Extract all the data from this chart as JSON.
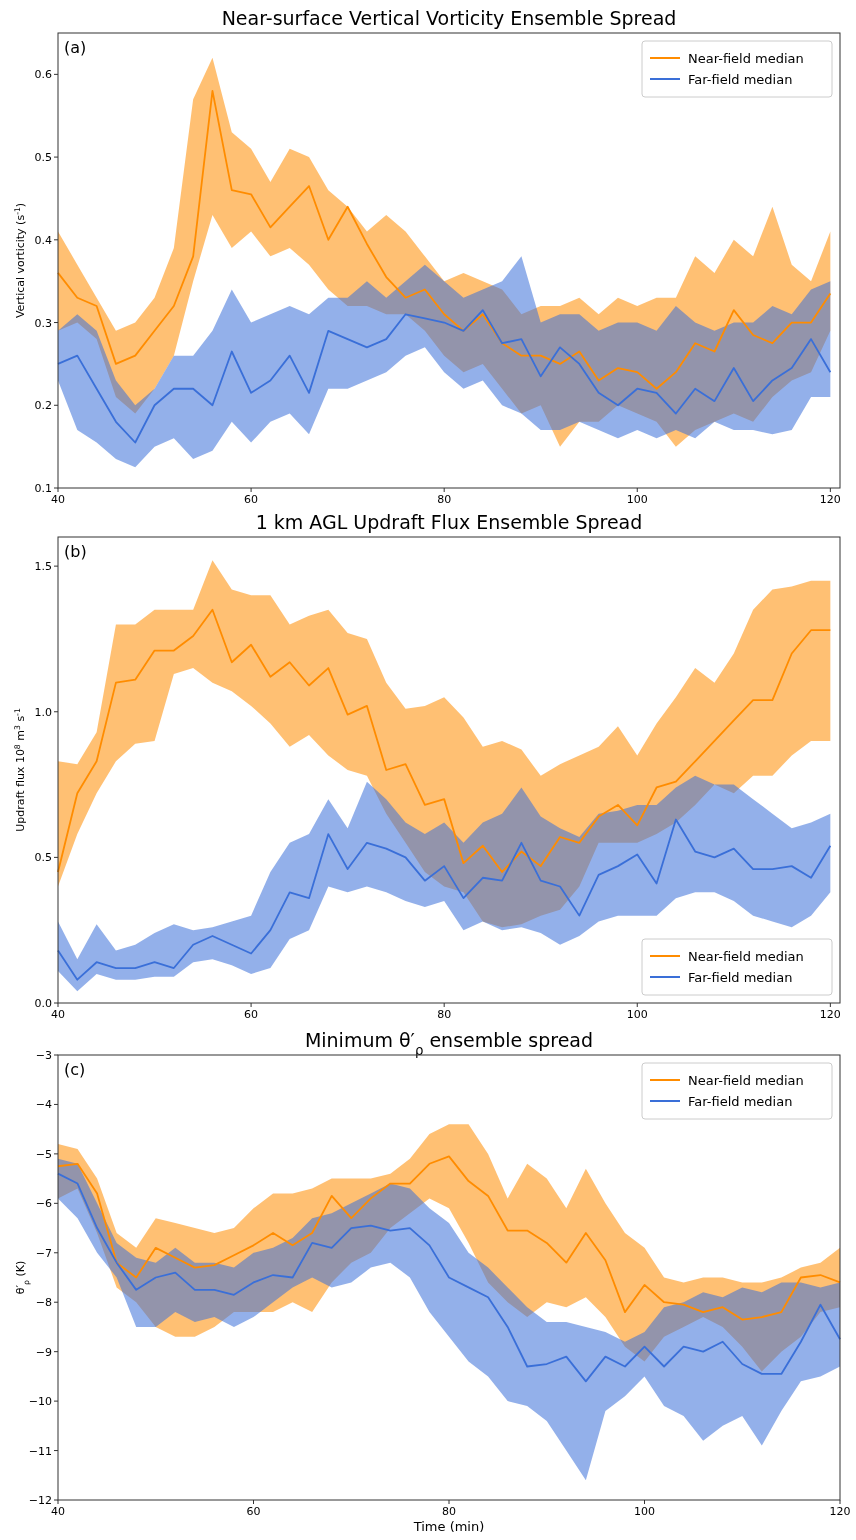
{
  "chart_data": [
    {
      "type": "line",
      "title": "Near-surface Vertical Vorticity Ensemble Spread",
      "ylabel": "Vertical vorticity (s$^{-1}$)",
      "annotations": [
        "(a)"
      ],
      "legend": "top right",
      "grid": false,
      "x": [
        40,
        42,
        44,
        46,
        48,
        50,
        52,
        54,
        56,
        58,
        60,
        62,
        64,
        66,
        68,
        70,
        72,
        74,
        76,
        78,
        80,
        82,
        84,
        86,
        88,
        90,
        92,
        94,
        96,
        98,
        100,
        102,
        104,
        106,
        108,
        110,
        112,
        114,
        116,
        118,
        120
      ],
      "xlim": [
        40,
        121
      ],
      "xticks": [
        40,
        60,
        80,
        100,
        120
      ],
      "ylim": [
        0.1,
        0.65
      ],
      "yticks": [
        0.1,
        0.2,
        0.3,
        0.4,
        0.5,
        0.6
      ],
      "series": [
        {
          "name": "Near-field median",
          "color": "#ff8c00",
          "values": [
            0.36,
            0.33,
            0.32,
            0.25,
            0.26,
            0.29,
            0.32,
            0.38,
            0.58,
            0.46,
            0.455,
            0.415,
            0.44,
            0.465,
            0.4,
            0.44,
            0.395,
            0.355,
            0.33,
            0.34,
            0.31,
            0.29,
            0.31,
            0.275,
            0.26,
            0.26,
            0.25,
            0.265,
            0.23,
            0.245,
            0.24,
            0.22,
            0.24,
            0.275,
            0.265,
            0.315,
            0.285,
            0.275,
            0.3,
            0.3,
            0.335
          ],
          "lower": [
            0.29,
            0.3,
            0.28,
            0.21,
            0.19,
            0.22,
            0.26,
            0.35,
            0.43,
            0.39,
            0.41,
            0.38,
            0.39,
            0.37,
            0.34,
            0.32,
            0.32,
            0.31,
            0.31,
            0.29,
            0.26,
            0.24,
            0.25,
            0.22,
            0.19,
            0.2,
            0.15,
            0.18,
            0.18,
            0.2,
            0.19,
            0.18,
            0.15,
            0.17,
            0.18,
            0.19,
            0.18,
            0.21,
            0.23,
            0.24,
            0.29
          ],
          "upper": [
            0.41,
            0.37,
            0.33,
            0.29,
            0.3,
            0.33,
            0.39,
            0.57,
            0.62,
            0.53,
            0.51,
            0.47,
            0.51,
            0.5,
            0.46,
            0.44,
            0.41,
            0.43,
            0.41,
            0.38,
            0.35,
            0.36,
            0.35,
            0.34,
            0.31,
            0.32,
            0.32,
            0.33,
            0.31,
            0.33,
            0.32,
            0.33,
            0.33,
            0.38,
            0.36,
            0.4,
            0.38,
            0.44,
            0.37,
            0.35,
            0.41
          ]
        },
        {
          "name": "Far-field median",
          "color": "#3a6fd8",
          "values": [
            0.25,
            0.26,
            0.22,
            0.18,
            0.155,
            0.2,
            0.22,
            0.22,
            0.2,
            0.265,
            0.215,
            0.23,
            0.26,
            0.215,
            0.29,
            0.28,
            0.27,
            0.28,
            0.31,
            0.305,
            0.3,
            0.29,
            0.315,
            0.275,
            0.28,
            0.235,
            0.27,
            0.25,
            0.215,
            0.2,
            0.22,
            0.215,
            0.19,
            0.22,
            0.205,
            0.245,
            0.205,
            0.23,
            0.245,
            0.28,
            0.24
          ],
          "lower": [
            0.23,
            0.17,
            0.155,
            0.135,
            0.125,
            0.15,
            0.16,
            0.135,
            0.145,
            0.18,
            0.155,
            0.18,
            0.19,
            0.165,
            0.22,
            0.22,
            0.23,
            0.24,
            0.26,
            0.27,
            0.24,
            0.22,
            0.23,
            0.2,
            0.19,
            0.17,
            0.17,
            0.18,
            0.17,
            0.16,
            0.17,
            0.16,
            0.17,
            0.16,
            0.18,
            0.17,
            0.17,
            0.165,
            0.17,
            0.21,
            0.21
          ],
          "upper": [
            0.29,
            0.31,
            0.29,
            0.23,
            0.2,
            0.22,
            0.26,
            0.26,
            0.29,
            0.34,
            0.3,
            0.31,
            0.32,
            0.31,
            0.33,
            0.33,
            0.35,
            0.33,
            0.35,
            0.37,
            0.35,
            0.33,
            0.34,
            0.35,
            0.38,
            0.3,
            0.31,
            0.31,
            0.29,
            0.3,
            0.3,
            0.29,
            0.32,
            0.3,
            0.29,
            0.3,
            0.3,
            0.32,
            0.31,
            0.34,
            0.35
          ]
        }
      ]
    },
    {
      "type": "line",
      "title": "1 km AGL Updraft Flux Ensemble Spread",
      "ylabel": "Updraft flux 10$^{8}$ m$^{3}$ s$^{-1}$",
      "annotations": [
        "(b)"
      ],
      "legend": "bottom right",
      "grid": false,
      "x": [
        40,
        42,
        44,
        46,
        48,
        50,
        52,
        54,
        56,
        58,
        60,
        62,
        64,
        66,
        68,
        70,
        72,
        74,
        76,
        78,
        80,
        82,
        84,
        86,
        88,
        90,
        92,
        94,
        96,
        98,
        100,
        102,
        104,
        106,
        108,
        110,
        112,
        114,
        116,
        118,
        120
      ],
      "xlim": [
        40,
        121
      ],
      "xticks": [
        40,
        60,
        80,
        100,
        120
      ],
      "ylim": [
        0,
        1.6
      ],
      "yticks": [
        {
          "value": 0,
          "label": "0.0"
        },
        0.5,
        {
          "value": 1,
          "label": "1.0"
        },
        1.5
      ],
      "series": [
        {
          "name": "Near-field median",
          "color": "#ff8c00",
          "values": [
            0.45,
            0.72,
            0.83,
            1.1,
            1.11,
            1.21,
            1.21,
            1.26,
            1.35,
            1.17,
            1.23,
            1.12,
            1.17,
            1.09,
            1.15,
            0.99,
            1.02,
            0.8,
            0.82,
            0.68,
            0.7,
            0.48,
            0.54,
            0.45,
            0.52,
            0.47,
            0.57,
            0.55,
            0.64,
            0.68,
            0.61,
            0.74,
            0.76,
            0.83,
            0.9,
            0.97,
            1.04,
            1.04,
            1.2,
            1.28,
            1.28
          ],
          "lower": [
            0.4,
            0.58,
            0.72,
            0.83,
            0.89,
            0.9,
            1.13,
            1.15,
            1.1,
            1.07,
            1.02,
            0.96,
            0.88,
            0.92,
            0.85,
            0.8,
            0.78,
            0.65,
            0.55,
            0.45,
            0.4,
            0.38,
            0.28,
            0.26,
            0.27,
            0.3,
            0.32,
            0.4,
            0.55,
            0.55,
            0.55,
            0.58,
            0.62,
            0.68,
            0.75,
            0.72,
            0.78,
            0.78,
            0.85,
            0.9,
            0.9
          ],
          "upper": [
            0.83,
            0.82,
            0.93,
            1.3,
            1.3,
            1.35,
            1.35,
            1.35,
            1.52,
            1.42,
            1.4,
            1.4,
            1.3,
            1.33,
            1.35,
            1.27,
            1.25,
            1.1,
            1.01,
            1.02,
            1.05,
            0.98,
            0.88,
            0.9,
            0.87,
            0.78,
            0.82,
            0.85,
            0.88,
            0.95,
            0.85,
            0.96,
            1.05,
            1.15,
            1.1,
            1.2,
            1.35,
            1.42,
            1.43,
            1.45,
            1.45
          ]
        },
        {
          "name": "Far-field median",
          "color": "#3a6fd8",
          "values": [
            0.18,
            0.08,
            0.14,
            0.12,
            0.12,
            0.14,
            0.12,
            0.2,
            0.23,
            0.2,
            0.17,
            0.25,
            0.38,
            0.36,
            0.58,
            0.46,
            0.55,
            0.53,
            0.5,
            0.42,
            0.47,
            0.36,
            0.43,
            0.42,
            0.55,
            0.42,
            0.4,
            0.3,
            0.44,
            0.47,
            0.51,
            0.41,
            0.63,
            0.52,
            0.5,
            0.53,
            0.46,
            0.46,
            0.47,
            0.43,
            0.54
          ],
          "lower": [
            0.11,
            0.04,
            0.1,
            0.08,
            0.08,
            0.09,
            0.09,
            0.14,
            0.15,
            0.13,
            0.1,
            0.12,
            0.22,
            0.25,
            0.4,
            0.38,
            0.4,
            0.38,
            0.35,
            0.33,
            0.35,
            0.25,
            0.28,
            0.25,
            0.26,
            0.24,
            0.2,
            0.23,
            0.28,
            0.3,
            0.3,
            0.3,
            0.36,
            0.38,
            0.38,
            0.35,
            0.3,
            0.28,
            0.26,
            0.3,
            0.38
          ],
          "upper": [
            0.28,
            0.15,
            0.27,
            0.18,
            0.2,
            0.24,
            0.27,
            0.25,
            0.26,
            0.28,
            0.3,
            0.45,
            0.55,
            0.58,
            0.7,
            0.6,
            0.76,
            0.7,
            0.62,
            0.58,
            0.62,
            0.55,
            0.62,
            0.65,
            0.74,
            0.64,
            0.6,
            0.57,
            0.65,
            0.66,
            0.68,
            0.68,
            0.74,
            0.78,
            0.75,
            0.75,
            0.7,
            0.65,
            0.6,
            0.62,
            0.65
          ]
        }
      ]
    },
    {
      "type": "line",
      "title": "Minimum θ′$_{ρ}$ ensemble spread",
      "xlabel": "Time (min)",
      "ylabel": "θ′$_{ρ}$ (K)",
      "annotations": [
        "(c)"
      ],
      "legend": "top right",
      "grid": false,
      "x": [
        40,
        42,
        44,
        46,
        48,
        50,
        52,
        54,
        56,
        58,
        60,
        62,
        64,
        66,
        68,
        70,
        72,
        74,
        76,
        78,
        80,
        82,
        84,
        86,
        88,
        90,
        92,
        94,
        96,
        98,
        100,
        102,
        104,
        106,
        108,
        110,
        112,
        114,
        116,
        118,
        120
      ],
      "xlim": [
        40,
        120
      ],
      "xticks": [
        40,
        60,
        80,
        100,
        120
      ],
      "ylim": [
        -12,
        -3
      ],
      "yticks": [
        {
          "value": -12,
          "label": "−12"
        },
        {
          "value": -11,
          "label": "−11"
        },
        {
          "value": -10,
          "label": "−10"
        },
        {
          "value": -9,
          "label": "−9"
        },
        {
          "value": -8,
          "label": "−8"
        },
        {
          "value": -7,
          "label": "−7"
        },
        {
          "value": -6,
          "label": "−6"
        },
        {
          "value": -5,
          "label": "−5"
        },
        {
          "value": -4,
          "label": "−4"
        },
        {
          "value": -3,
          "label": "−3"
        }
      ],
      "series": [
        {
          "name": "Near-field median",
          "color": "#ff8c00",
          "values": [
            -5.25,
            -5.2,
            -5.8,
            -7.2,
            -7.5,
            -6.9,
            -7.1,
            -7.3,
            -7.25,
            -7.05,
            -6.85,
            -6.6,
            -6.85,
            -6.6,
            -5.85,
            -6.3,
            -5.9,
            -5.6,
            -5.6,
            -5.2,
            -5.05,
            -5.55,
            -5.85,
            -6.55,
            -6.55,
            -6.8,
            -7.2,
            -6.6,
            -7.15,
            -8.2,
            -7.65,
            -8.0,
            -8.05,
            -8.2,
            -8.1,
            -8.35,
            -8.3,
            -8.2,
            -7.5,
            -7.45,
            -7.6
          ],
          "lower": [
            -5.9,
            -5.7,
            -6.6,
            -7.7,
            -8.0,
            -8.5,
            -8.7,
            -8.7,
            -8.5,
            -8.2,
            -8.2,
            -8.2,
            -8.0,
            -8.2,
            -7.6,
            -7.2,
            -7.0,
            -6.5,
            -6.2,
            -5.9,
            -6.1,
            -6.8,
            -7.6,
            -8.0,
            -8.3,
            -8.0,
            -8.1,
            -7.9,
            -8.3,
            -8.9,
            -9.2,
            -8.7,
            -8.5,
            -8.3,
            -8.5,
            -8.9,
            -9.4,
            -9.0,
            -8.7,
            -8.2,
            -8.1
          ],
          "upper": [
            -4.8,
            -4.9,
            -5.5,
            -6.6,
            -6.9,
            -6.3,
            -6.4,
            -6.5,
            -6.6,
            -6.5,
            -6.1,
            -5.8,
            -5.8,
            -5.7,
            -5.5,
            -5.5,
            -5.5,
            -5.4,
            -5.1,
            -4.6,
            -4.4,
            -4.4,
            -5.0,
            -5.9,
            -5.2,
            -5.5,
            -6.1,
            -5.3,
            -6.0,
            -6.6,
            -6.9,
            -7.5,
            -7.6,
            -7.5,
            -7.5,
            -7.6,
            -7.6,
            -7.5,
            -7.3,
            -7.2,
            -6.9
          ]
        },
        {
          "name": "Far-field median",
          "color": "#3a6fd8",
          "values": [
            -5.4,
            -5.6,
            -6.5,
            -7.2,
            -7.75,
            -7.5,
            -7.4,
            -7.75,
            -7.75,
            -7.85,
            -7.6,
            -7.45,
            -7.5,
            -6.8,
            -6.9,
            -6.5,
            -6.45,
            -6.55,
            -6.5,
            -6.85,
            -7.5,
            -7.7,
            -7.9,
            -8.5,
            -9.3,
            -9.25,
            -9.1,
            -9.6,
            -9.1,
            -9.3,
            -8.9,
            -9.3,
            -8.9,
            -9.0,
            -8.8,
            -9.25,
            -9.45,
            -9.45,
            -8.8,
            -8.05,
            -8.75
          ],
          "lower": [
            -5.9,
            -6.3,
            -7.0,
            -7.5,
            -8.5,
            -8.5,
            -8.2,
            -8.4,
            -8.3,
            -8.5,
            -8.3,
            -8.0,
            -7.7,
            -7.5,
            -7.7,
            -7.6,
            -7.3,
            -7.2,
            -7.5,
            -8.2,
            -8.7,
            -9.2,
            -9.5,
            -10.0,
            -10.1,
            -10.4,
            -11.0,
            -11.6,
            -10.2,
            -9.9,
            -9.5,
            -10.1,
            -10.3,
            -10.8,
            -10.5,
            -10.3,
            -10.9,
            -10.2,
            -9.6,
            -9.5,
            -9.3
          ],
          "upper": [
            -5.1,
            -5.2,
            -6.0,
            -6.8,
            -7.1,
            -7.2,
            -6.9,
            -7.2,
            -7.2,
            -7.3,
            -7.0,
            -6.9,
            -6.7,
            -6.3,
            -6.2,
            -6.0,
            -5.8,
            -5.6,
            -5.7,
            -6.1,
            -6.4,
            -7.0,
            -7.3,
            -7.7,
            -8.1,
            -8.4,
            -8.4,
            -8.5,
            -8.6,
            -8.8,
            -8.6,
            -8.1,
            -8.0,
            -7.8,
            -7.9,
            -7.7,
            -7.8,
            -7.6,
            -7.6,
            -7.7,
            -7.6
          ]
        }
      ]
    }
  ]
}
